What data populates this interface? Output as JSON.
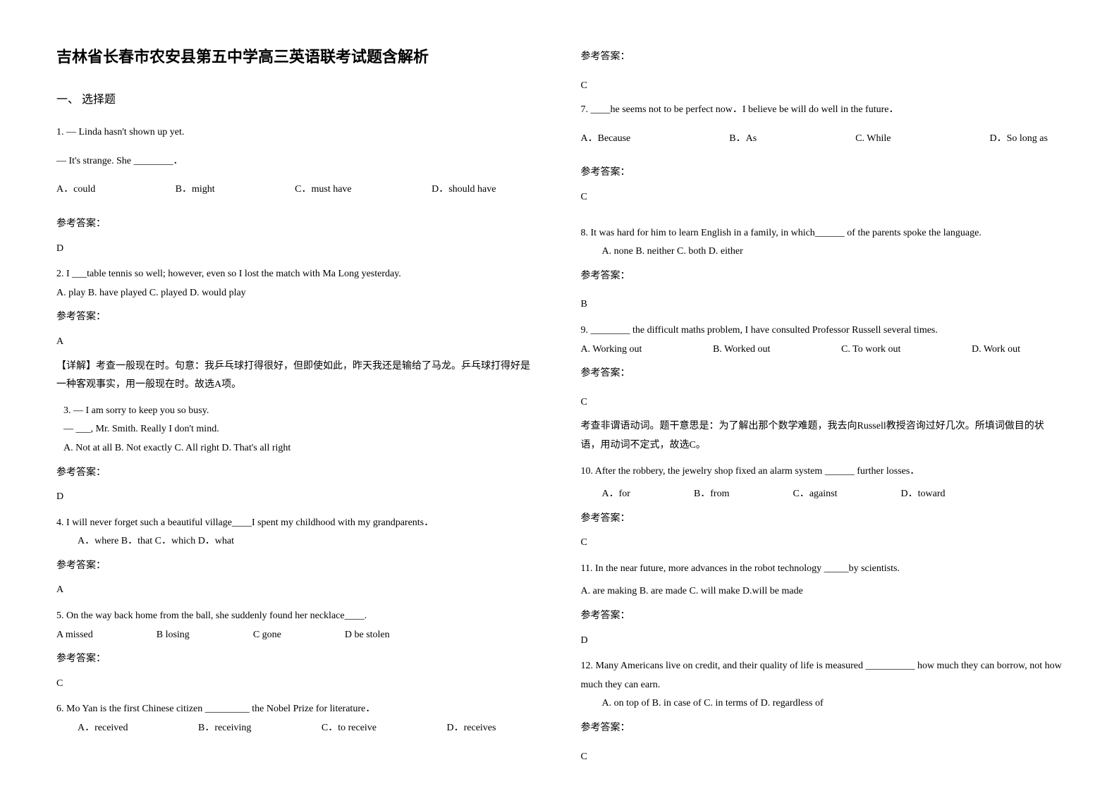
{
  "title": "吉林省长春市农安县第五中学高三英语联考试题含解析",
  "section1_title": "一、 选择题",
  "answer_label": "参考答案：",
  "q1": {
    "line1": "1. — Linda hasn't shown up yet.",
    "line2": "— It's strange. She ________．",
    "optA": "A．could",
    "optB": "B．might",
    "optC": "C．must have",
    "optD": "D．should have",
    "answer": "D"
  },
  "q2": {
    "text": "2. I ___table tennis so well; however, even so I lost the match with Ma Long yesterday.",
    "opts": "A. play  B. have played  C. played      D. would play",
    "answer": "A",
    "explanation": "【详解】考查一般现在时。句意：我乒乓球打得很好，但即使如此，昨天我还是输给了马龙。乒乓球打得好是一种客观事实，用一般现在时。故选A项。"
  },
  "q3": {
    "line1": "3.  — I am sorry to keep you so busy.",
    "line2": "— ___, Mr. Smith. Really I don't mind.",
    "opts": "A. Not at all   B. Not exactly    C. All right    D. That's all right",
    "answer": "D"
  },
  "q4": {
    "text": "4. I will never forget such a beautiful village____I spent my childhood with my grandparents．",
    "opts": "A．where  B．that     C．which    D．what",
    "answer": "A"
  },
  "q5": {
    "text": "5. On the way back home from the ball, she suddenly found her necklace____.",
    "optA": "A missed",
    "optB": "B losing",
    "optC": "C gone",
    "optD": "D be stolen",
    "answer": "C"
  },
  "q6": {
    "text": "6. Mo Yan is the first Chinese citizen _________ the Nobel Prize for literature．",
    "optA": "A．received",
    "optB": "B．receiving",
    "optC": "C．to receive",
    "optD": "D．receives",
    "answer": "C"
  },
  "q7": {
    "text": "7. ____he seems not to be perfect now．I believe be will do well in the future．",
    "optA": "A．Because",
    "optB": "B．As",
    "optC": "C. While",
    "optD": "D．So long as",
    "answer": "C"
  },
  "q8": {
    "text": "8. It was hard for him to learn English in a family, in which______ of the parents spoke the language.",
    "opts": "A. none       B. neither      C. both     D. either",
    "answer": "B"
  },
  "q9": {
    "text": "9. ________ the difficult maths problem, I have consulted Professor Russell several times.",
    "optA": "A. Working out",
    "optB": "B. Worked out",
    "optC": "C. To work out",
    "optD": "D. Work out",
    "answer": "C",
    "explanation": "考查非谓语动词。题干意思是：为了解出那个数学难题，我去向Russell教授咨询过好几次。所填词做目的状语，用动词不定式，故选C。"
  },
  "q10": {
    "text": "10.  After the robbery, the jewelry shop fixed an alarm system ______ further losses．",
    "optA": "A．for",
    "optB": "B．from",
    "optC": "C．against",
    "optD": "D．toward",
    "answer": "C"
  },
  "q11": {
    "text": "11. In the near future, more advances in the robot technology _____by scientists.",
    "opts": "A. are making   B. are made   C. will make    D.will be made",
    "answer": "D"
  },
  "q12": {
    "text": "12. Many Americans live on credit, and their quality of life is measured __________ how much they can borrow, not how much they can earn.",
    "opts": "A. on top of   B. in case of   C. in terms of  D. regardless of",
    "answer": "C"
  }
}
